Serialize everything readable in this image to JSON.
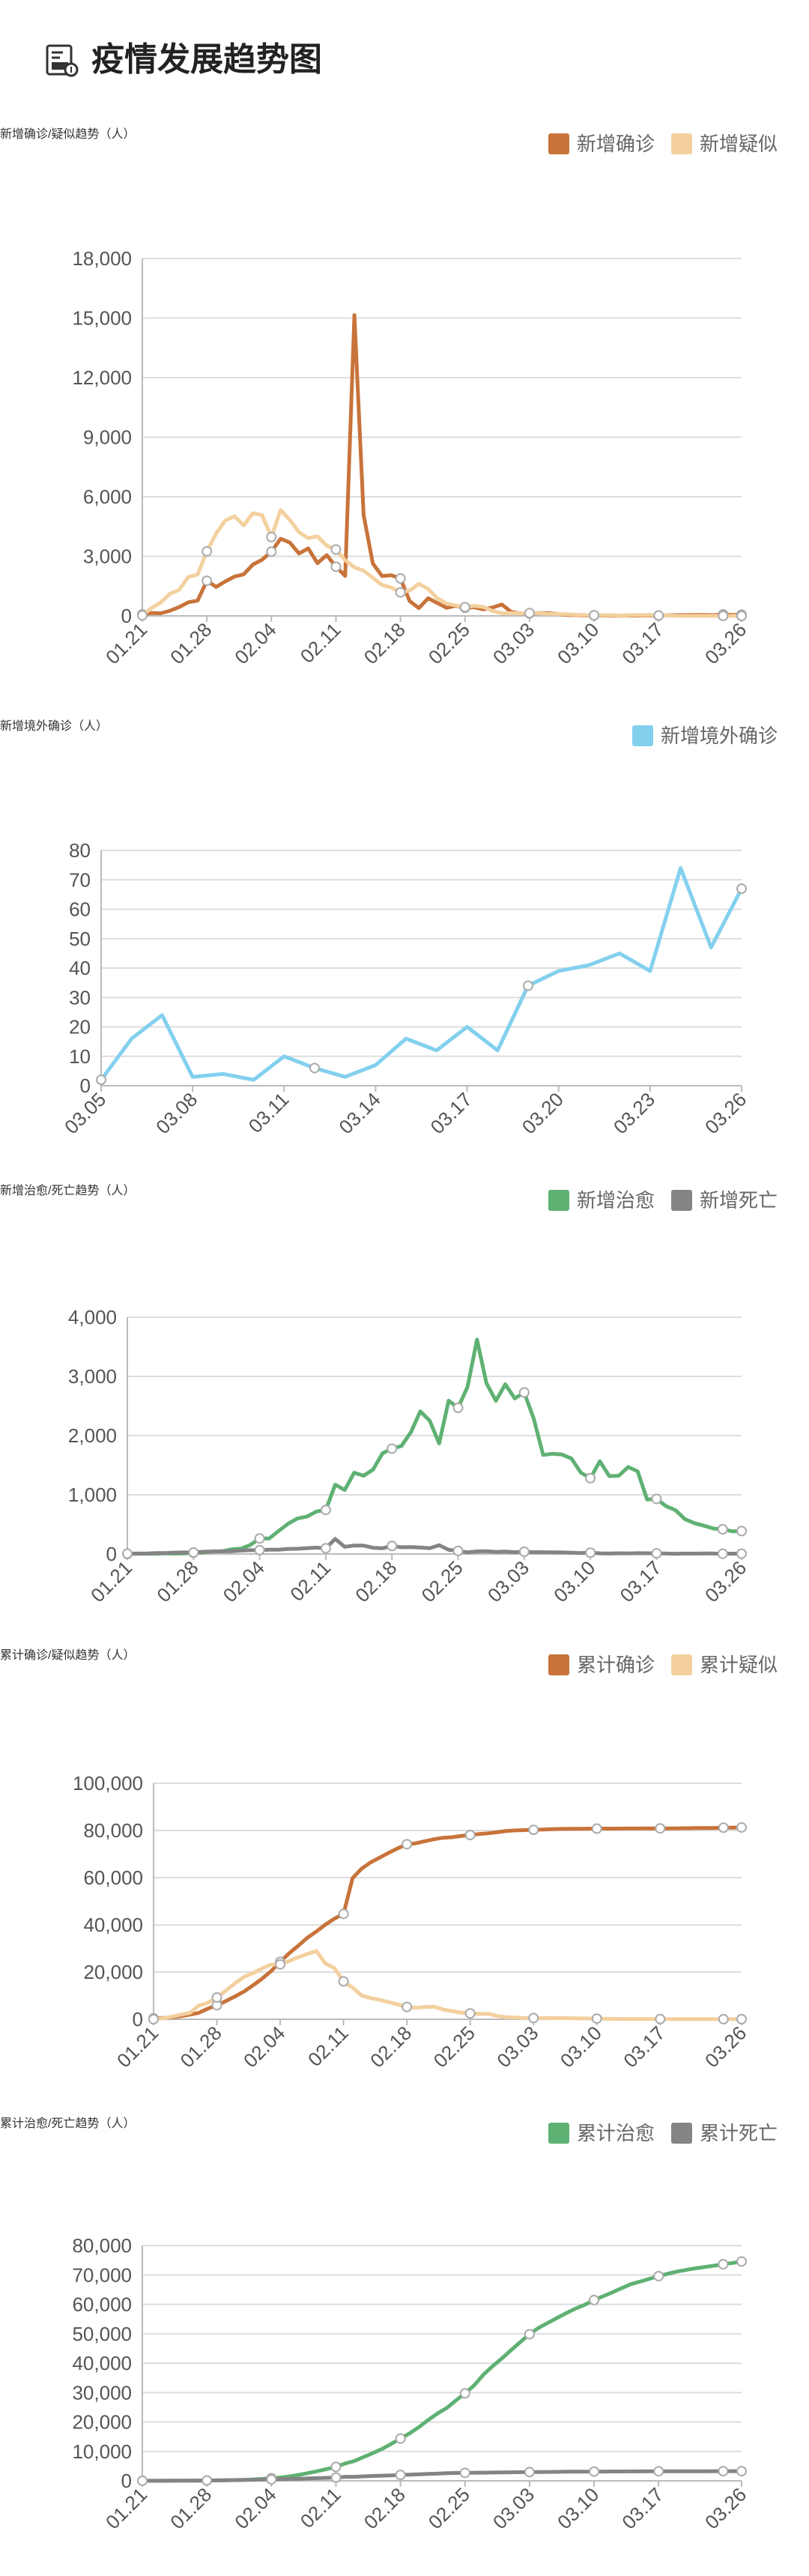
{
  "page": {
    "title": "疫情发展趋势图",
    "icon": "chart-report-icon"
  },
  "chart_data": [
    {
      "type": "line",
      "title": "新增确诊/疑似趋势（人）",
      "xtick_labels": [
        "01.21",
        "01.28",
        "02.04",
        "02.11",
        "02.18",
        "02.25",
        "03.03",
        "03.10",
        "03.17",
        "03.26"
      ],
      "yticks": [
        0,
        3000,
        6000,
        9000,
        12000,
        15000,
        18000
      ],
      "ylim": [
        0,
        18000
      ],
      "grid": true,
      "legend": "top-right",
      "x": [
        "01.21",
        "01.22",
        "01.23",
        "01.24",
        "01.25",
        "01.26",
        "01.27",
        "01.28",
        "01.29",
        "01.30",
        "01.31",
        "02.01",
        "02.02",
        "02.03",
        "02.04",
        "02.05",
        "02.06",
        "02.07",
        "02.08",
        "02.09",
        "02.10",
        "02.11",
        "02.12",
        "02.13",
        "02.14",
        "02.15",
        "02.16",
        "02.17",
        "02.18",
        "02.19",
        "02.20",
        "02.21",
        "02.22",
        "02.23",
        "02.24",
        "02.25",
        "02.26",
        "02.27",
        "02.28",
        "02.29",
        "03.01",
        "03.02",
        "03.03",
        "03.04",
        "03.05",
        "03.06",
        "03.07",
        "03.08",
        "03.09",
        "03.10",
        "03.11",
        "03.12",
        "03.13",
        "03.14",
        "03.15",
        "03.16",
        "03.17",
        "03.18",
        "03.19",
        "03.20",
        "03.21",
        "03.22",
        "03.23",
        "03.24",
        "03.25",
        "03.26"
      ],
      "series": [
        {
          "name": "新增确诊",
          "color": "#c8733a",
          "values": [
            77,
            149,
            131,
            259,
            444,
            688,
            769,
            1771,
            1459,
            1737,
            1981,
            2099,
            2590,
            2829,
            3235,
            3887,
            3694,
            3143,
            3399,
            2656,
            3062,
            2478,
            2015,
            15152,
            5090,
            2641,
            2008,
            2048,
            1886,
            749,
            394,
            889,
            648,
            409,
            508,
            406,
            433,
            327,
            427,
            573,
            202,
            125,
            119,
            139,
            143,
            99,
            44,
            40,
            19,
            24,
            15,
            8,
            11,
            20,
            16,
            21,
            13,
            34,
            39,
            41,
            46,
            45,
            39,
            78,
            47,
            67
          ]
        },
        {
          "name": "新增疑似",
          "color": "#f3d09e",
          "values": [
            27,
            392,
            680,
            1118,
            1309,
            1965,
            2077,
            3248,
            4148,
            4812,
            5019,
            4562,
            5173,
            5072,
            3971,
            5328,
            4833,
            4214,
            3916,
            4008,
            3536,
            3342,
            2807,
            2450,
            2277,
            1918,
            1563,
            1432,
            1185,
            1277,
            1614,
            1361,
            882,
            620,
            530,
            439,
            508,
            452,
            248,
            132,
            141,
            129,
            143,
            143,
            102,
            99,
            84,
            60,
            36,
            31,
            33,
            33,
            17,
            39,
            41,
            45,
            23,
            26,
            0,
            0,
            0,
            0,
            0,
            0,
            0,
            0
          ]
        }
      ]
    },
    {
      "type": "line",
      "title": "新增境外确诊（人）",
      "xtick_labels": [
        "03.05",
        "03.08",
        "03.11",
        "03.14",
        "03.17",
        "03.20",
        "03.23",
        "03.26"
      ],
      "yticks": [
        0,
        10,
        20,
        30,
        40,
        50,
        60,
        70,
        80
      ],
      "ylim": [
        0,
        80
      ],
      "grid": true,
      "legend": "top-right",
      "x": [
        "03.05",
        "03.06",
        "03.07",
        "03.08",
        "03.09",
        "03.10",
        "03.11",
        "03.12",
        "03.13",
        "03.14",
        "03.15",
        "03.16",
        "03.17",
        "03.18",
        "03.19",
        "03.20",
        "03.21",
        "03.22",
        "03.23",
        "03.24",
        "03.25",
        "03.26"
      ],
      "series": [
        {
          "name": "新增境外确诊",
          "color": "#83d0ee",
          "values": [
            2,
            16,
            24,
            3,
            4,
            2,
            10,
            6,
            3,
            7,
            16,
            12,
            20,
            12,
            34,
            39,
            41,
            45,
            39,
            74,
            47,
            67
          ]
        }
      ]
    },
    {
      "type": "line",
      "title": "新增治愈/死亡趋势（人）",
      "xtick_labels": [
        "01.21",
        "01.28",
        "02.04",
        "02.11",
        "02.18",
        "02.25",
        "03.03",
        "03.10",
        "03.17",
        "03.26"
      ],
      "yticks": [
        0,
        1000,
        2000,
        3000,
        4000
      ],
      "ylim": [
        0,
        4000
      ],
      "grid": true,
      "legend": "top-right",
      "x": [
        "01.21",
        "01.22",
        "01.23",
        "01.24",
        "01.25",
        "01.26",
        "01.27",
        "01.28",
        "01.29",
        "01.30",
        "01.31",
        "02.01",
        "02.02",
        "02.03",
        "02.04",
        "02.05",
        "02.06",
        "02.07",
        "02.08",
        "02.09",
        "02.10",
        "02.11",
        "02.12",
        "02.13",
        "02.14",
        "02.15",
        "02.16",
        "02.17",
        "02.18",
        "02.19",
        "02.20",
        "02.21",
        "02.22",
        "02.23",
        "02.24",
        "02.25",
        "02.26",
        "02.27",
        "02.28",
        "02.29",
        "03.01",
        "03.02",
        "03.03",
        "03.04",
        "03.05",
        "03.06",
        "03.07",
        "03.08",
        "03.09",
        "03.10",
        "03.11",
        "03.12",
        "03.13",
        "03.14",
        "03.15",
        "03.16",
        "03.17",
        "03.18",
        "03.19",
        "03.20",
        "03.21",
        "03.22",
        "03.23",
        "03.24",
        "03.25",
        "03.26"
      ],
      "series": [
        {
          "name": "新增治愈",
          "color": "#5fb173",
          "values": [
            0,
            3,
            6,
            4,
            11,
            6,
            9,
            20,
            23,
            43,
            46,
            78,
            90,
            151,
            262,
            261,
            387,
            510,
            600,
            632,
            716,
            744,
            1171,
            1081,
            1373,
            1323,
            1425,
            1701,
            1779,
            1824,
            2056,
            2410,
            2251,
            1867,
            2590,
            2470,
            2825,
            3622,
            2885,
            2589,
            2867,
            2628,
            2729,
            2286,
            1674,
            1694,
            1680,
            1613,
            1374,
            1280,
            1567,
            1317,
            1321,
            1470,
            1397,
            922,
            931,
            809,
            740,
            590,
            521,
            479,
            431,
            417,
            383,
            387
          ]
        },
        {
          "name": "新增死亡",
          "color": "#848484",
          "values": [
            6,
            8,
            8,
            16,
            15,
            24,
            26,
            26,
            38,
            43,
            46,
            45,
            57,
            64,
            65,
            73,
            73,
            86,
            89,
            97,
            108,
            97,
            254,
            121,
            143,
            142,
            105,
            98,
            136,
            114,
            118,
            109,
            97,
            150,
            71,
            52,
            29,
            44,
            47,
            35,
            42,
            31,
            38,
            31,
            30,
            28,
            27,
            22,
            17,
            22,
            11,
            7,
            13,
            10,
            14,
            13,
            11,
            8,
            3,
            7,
            6,
            9,
            7,
            4,
            6,
            5
          ]
        }
      ]
    },
    {
      "type": "line",
      "title": "累计确诊/疑似趋势（人）",
      "xtick_labels": [
        "01.21",
        "01.28",
        "02.04",
        "02.11",
        "02.18",
        "02.25",
        "03.03",
        "03.10",
        "03.17",
        "03.26"
      ],
      "yticks": [
        0,
        20000,
        40000,
        60000,
        80000,
        100000
      ],
      "ylim": [
        0,
        100000
      ],
      "grid": true,
      "legend": "top-right",
      "x": [
        "01.21",
        "01.22",
        "01.23",
        "01.24",
        "01.25",
        "01.26",
        "01.27",
        "01.28",
        "01.29",
        "01.30",
        "01.31",
        "02.01",
        "02.02",
        "02.03",
        "02.04",
        "02.05",
        "02.06",
        "02.07",
        "02.08",
        "02.09",
        "02.10",
        "02.11",
        "02.12",
        "02.13",
        "02.14",
        "02.15",
        "02.16",
        "02.17",
        "02.18",
        "02.19",
        "02.20",
        "02.21",
        "02.22",
        "02.23",
        "02.24",
        "02.25",
        "02.26",
        "02.27",
        "02.28",
        "02.29",
        "03.01",
        "03.02",
        "03.03",
        "03.04",
        "03.05",
        "03.06",
        "03.07",
        "03.08",
        "03.09",
        "03.10",
        "03.11",
        "03.12",
        "03.13",
        "03.14",
        "03.15",
        "03.16",
        "03.17",
        "03.18",
        "03.19",
        "03.20",
        "03.21",
        "03.22",
        "03.23",
        "03.24",
        "03.25",
        "03.26"
      ],
      "series": [
        {
          "name": "累计确诊",
          "color": "#c8733a",
          "values": [
            440,
            571,
            830,
            1287,
            1975,
            2744,
            4515,
            5974,
            7711,
            9692,
            11791,
            14380,
            17205,
            20438,
            24324,
            28018,
            31161,
            34546,
            37198,
            40171,
            42638,
            44653,
            59804,
            63851,
            66492,
            68500,
            70548,
            72436,
            74185,
            74576,
            75465,
            76288,
            76936,
            77150,
            77658,
            78064,
            78497,
            78824,
            79251,
            79824,
            80026,
            80151,
            80270,
            80409,
            80552,
            80651,
            80695,
            80735,
            80754,
            80778,
            80793,
            80801,
            80813,
            80824,
            80844,
            80860,
            80881,
            80894,
            80928,
            80967,
            81008,
            81054,
            81093,
            81171,
            81218,
            81285
          ]
        },
        {
          "name": "累计疑似",
          "color": "#f3d09e",
          "values": [
            37,
            393,
            1072,
            1965,
            2684,
            5794,
            6973,
            9239,
            12167,
            15238,
            17988,
            19544,
            21558,
            23214,
            23260,
            24702,
            26359,
            27657,
            28942,
            23589,
            21675,
            16067,
            13435,
            10109,
            8969,
            8228,
            7264,
            6242,
            5248,
            4922,
            5206,
            5365,
            4148,
            3434,
            2824,
            2491,
            2358,
            2308,
            1418,
            851,
            715,
            587,
            520,
            522,
            482,
            502,
            458,
            421,
            349,
            285,
            253,
            147,
            115,
            113,
            134,
            128,
            119,
            105,
            104,
            93,
            93,
            49,
            54,
            57,
            63,
            70
          ]
        }
      ]
    },
    {
      "type": "line",
      "title": "累计治愈/死亡趋势（人）",
      "xtick_labels": [
        "01.21",
        "01.28",
        "02.04",
        "02.11",
        "02.18",
        "02.25",
        "03.03",
        "03.10",
        "03.17",
        "03.26"
      ],
      "yticks": [
        0,
        10000,
        20000,
        30000,
        40000,
        50000,
        60000,
        70000,
        80000
      ],
      "ylim": [
        0,
        80000
      ],
      "grid": true,
      "legend": "top-right",
      "x": [
        "01.21",
        "01.22",
        "01.23",
        "01.24",
        "01.25",
        "01.26",
        "01.27",
        "01.28",
        "01.29",
        "01.30",
        "01.31",
        "02.01",
        "02.02",
        "02.03",
        "02.04",
        "02.05",
        "02.06",
        "02.07",
        "02.08",
        "02.09",
        "02.10",
        "02.11",
        "02.12",
        "02.13",
        "02.14",
        "02.15",
        "02.16",
        "02.17",
        "02.18",
        "02.19",
        "02.20",
        "02.21",
        "02.22",
        "02.23",
        "02.24",
        "02.25",
        "02.26",
        "02.27",
        "02.28",
        "02.29",
        "03.01",
        "03.02",
        "03.03",
        "03.04",
        "03.05",
        "03.06",
        "03.07",
        "03.08",
        "03.09",
        "03.10",
        "03.11",
        "03.12",
        "03.13",
        "03.14",
        "03.15",
        "03.16",
        "03.17",
        "03.18",
        "03.19",
        "03.20",
        "03.21",
        "03.22",
        "03.23",
        "03.24",
        "03.25",
        "03.26"
      ],
      "series": [
        {
          "name": "累计治愈",
          "color": "#5fb173",
          "values": [
            28,
            28,
            34,
            38,
            49,
            51,
            60,
            103,
            124,
            171,
            243,
            328,
            475,
            632,
            892,
            1153,
            1540,
            2050,
            2649,
            3281,
            3996,
            4740,
            5911,
            6723,
            8096,
            9419,
            10844,
            12552,
            14376,
            16155,
            18264,
            20659,
            22888,
            24734,
            27323,
            29745,
            32495,
            36117,
            39002,
            41625,
            44462,
            47204,
            49856,
            52045,
            53726,
            55404,
            57065,
            58600,
            59897,
            61475,
            62793,
            64111,
            65541,
            66911,
            67749,
            68679,
            69601,
            70420,
            71150,
            71740,
            72244,
            72703,
            73159,
            73650,
            74051,
            74600
          ]
        },
        {
          "name": "累计死亡",
          "color": "#848484",
          "values": [
            9,
            17,
            25,
            41,
            56,
            80,
            106,
            132,
            170,
            213,
            259,
            304,
            361,
            425,
            490,
            563,
            636,
            722,
            811,
            908,
            1016,
            1113,
            1367,
            1380,
            1523,
            1665,
            1770,
            1868,
            2004,
            2118,
            2236,
            2345,
            2442,
            2592,
            2663,
            2715,
            2744,
            2788,
            2835,
            2870,
            2912,
            2943,
            2981,
            3012,
            3042,
            3070,
            3097,
            3119,
            3136,
            3158,
            3169,
            3176,
            3189,
            3199,
            3213,
            3226,
            3237,
            3245,
            3248,
            3255,
            3261,
            3270,
            3277,
            3281,
            3287,
            3292
          ]
        }
      ]
    }
  ]
}
